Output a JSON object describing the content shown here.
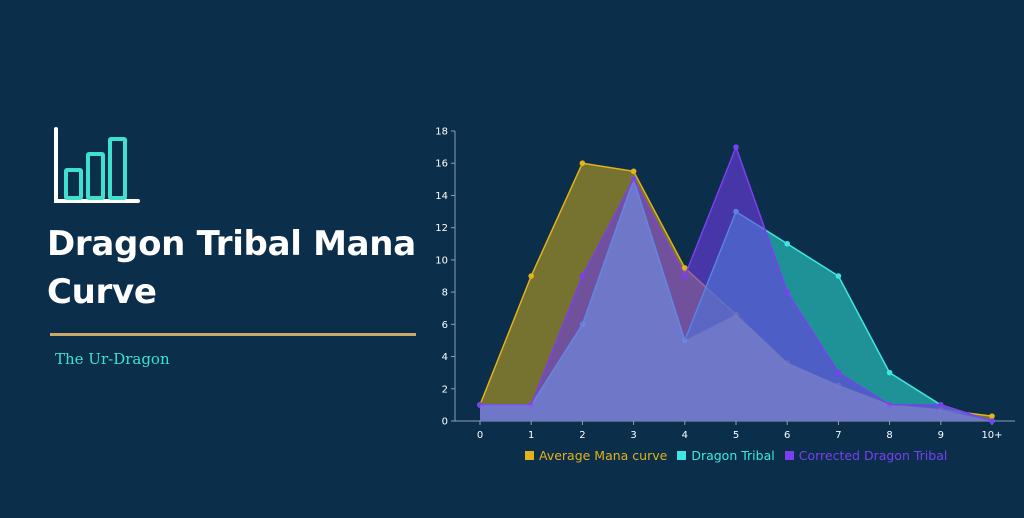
{
  "page": {
    "title": "Dragon Tribal Mana Curve",
    "subtitle": "The Ur-Dragon",
    "icon": "bar-chart-icon"
  },
  "colors": {
    "background": "#0b2e4a",
    "title": "#ffffff",
    "divider": "#c9a86a",
    "subtitle": "#3ee0d0",
    "icon_axis": "#ffffff",
    "icon_bars": "#3ee0d0"
  },
  "chart_data": {
    "type": "area",
    "title": "",
    "xlabel": "",
    "ylabel": "",
    "categories": [
      "0",
      "1",
      "2",
      "3",
      "4",
      "5",
      "6",
      "7",
      "8",
      "9",
      "10+"
    ],
    "ylim": [
      0,
      18
    ],
    "yticks": [
      0,
      2,
      4,
      6,
      8,
      10,
      12,
      14,
      16,
      18
    ],
    "grid": false,
    "legend_position": "bottom",
    "series": [
      {
        "name": "Average Mana curve",
        "color": "#e3b21c",
        "fill": "rgba(190,160,30,0.6)",
        "values": [
          1,
          9,
          16,
          15.5,
          9.5,
          6.6,
          3.6,
          2.2,
          1,
          0.7,
          0.3
        ]
      },
      {
        "name": "Dragon Tribal",
        "color": "#3ee8e0",
        "fill": "rgba(40,190,185,0.7)",
        "values": [
          1,
          1,
          6,
          15,
          5,
          13,
          11,
          9,
          3,
          1,
          0
        ]
      },
      {
        "name": "Corrected Dragon Tribal",
        "color": "#7b3ff0",
        "fill": "rgba(110,60,230,0.6)",
        "values": [
          1,
          1,
          9,
          15,
          9,
          17,
          8,
          3,
          1,
          1,
          0
        ]
      }
    ]
  }
}
